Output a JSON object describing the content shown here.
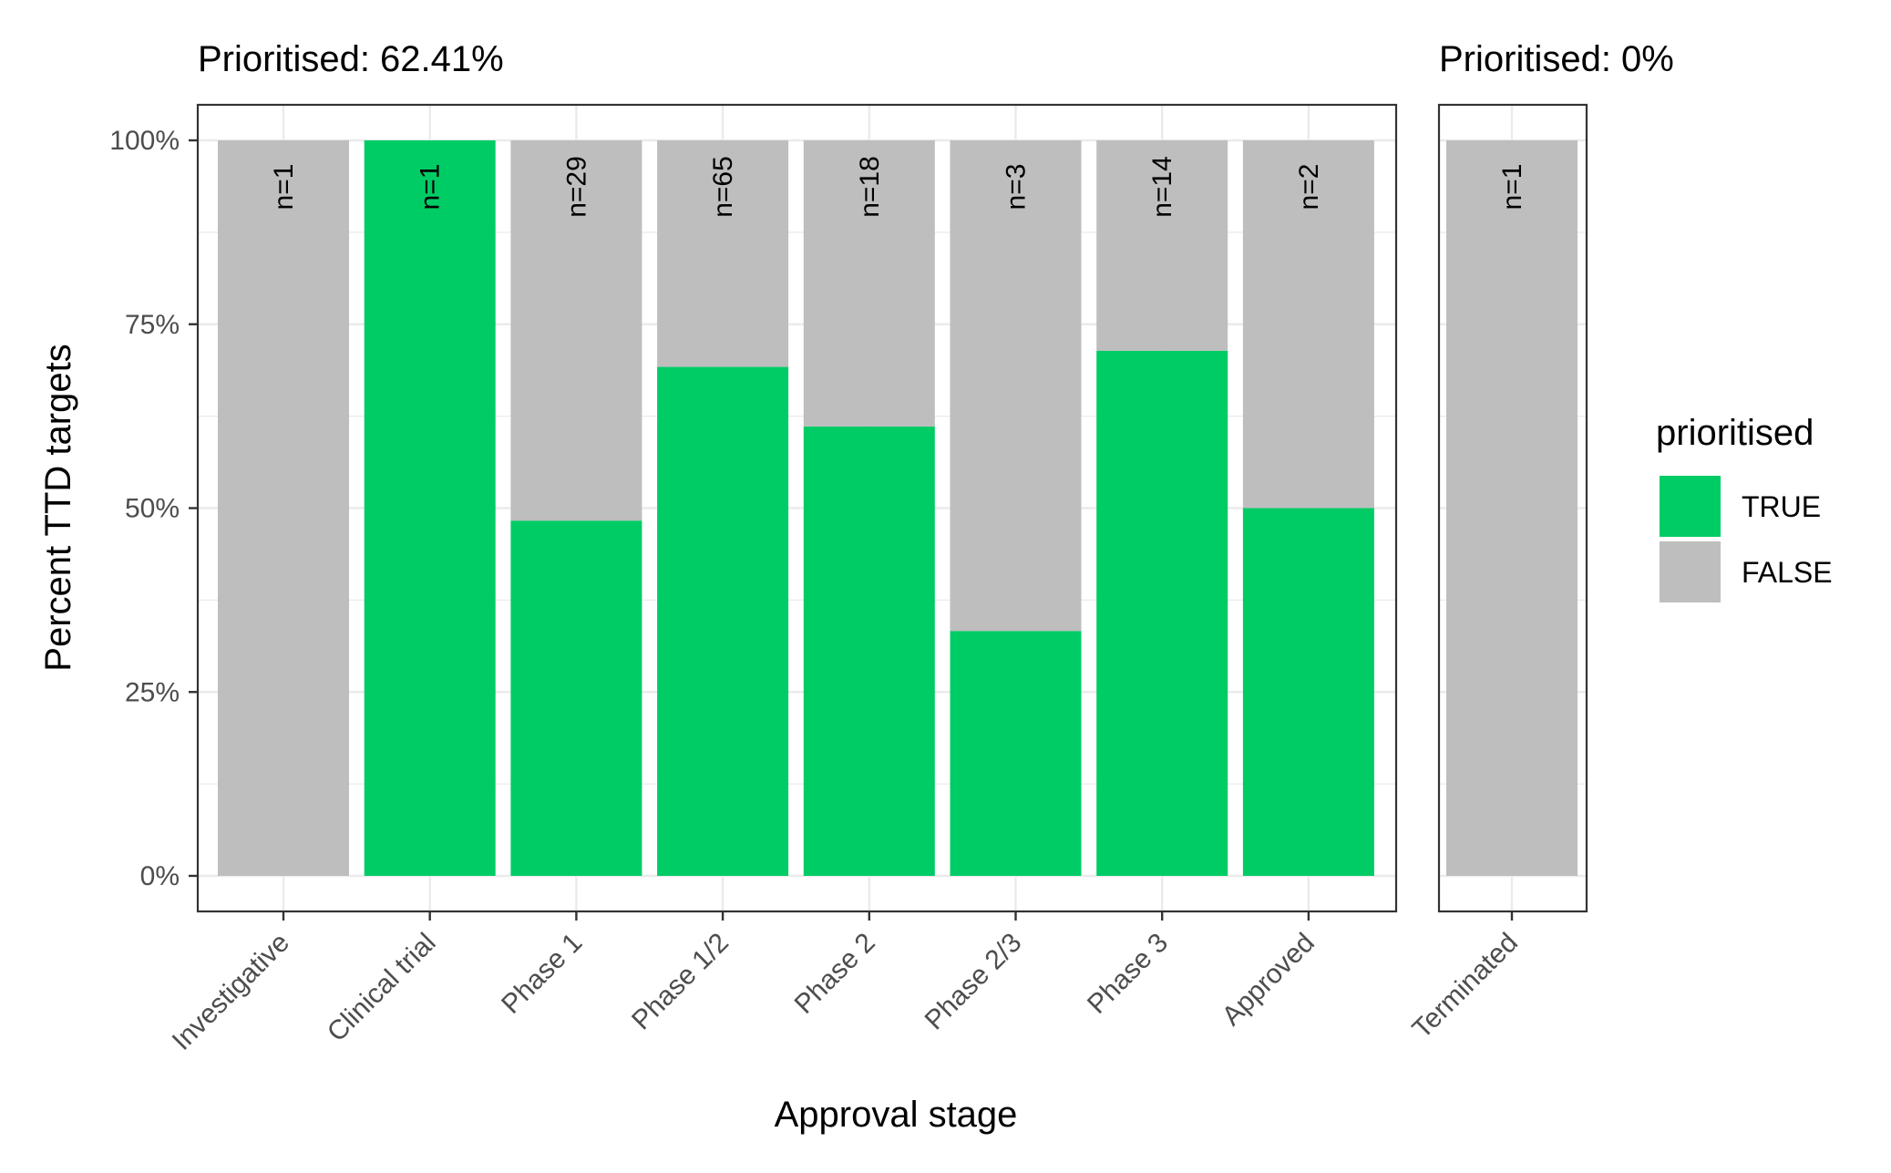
{
  "chart_data": {
    "type": "bar",
    "stacked": true,
    "xlabel": "Approval stage",
    "ylabel": "Percent TTD targets",
    "ylim": [
      0,
      1
    ],
    "y_ticks": [
      "0%",
      "25%",
      "50%",
      "75%",
      "100%"
    ],
    "grid": true,
    "legend": {
      "title": "prioritised",
      "position": "right",
      "entries": [
        {
          "label": "TRUE",
          "color": "#00CC66"
        },
        {
          "label": "FALSE",
          "color": "#BEBEBE"
        }
      ]
    },
    "colors": {
      "true": "#00CC66",
      "false": "#BEBEBE"
    },
    "facets": [
      {
        "title": "Prioritised: 62.41%",
        "categories": [
          "Investigative",
          "Clinical trial",
          "Phase 1",
          "Phase 1/2",
          "Phase 2",
          "Phase 2/3",
          "Phase 3",
          "Approved"
        ],
        "n_labels": [
          "n=1",
          "n=1",
          "n=29",
          "n=65",
          "n=18",
          "n=3",
          "n=14",
          "n=2"
        ],
        "series": [
          {
            "name": "TRUE",
            "values": [
              0.0,
              1.0,
              0.483,
              0.692,
              0.611,
              0.333,
              0.714,
              0.5
            ]
          },
          {
            "name": "FALSE",
            "values": [
              1.0,
              0.0,
              0.517,
              0.308,
              0.389,
              0.667,
              0.286,
              0.5
            ]
          }
        ]
      },
      {
        "title": "Prioritised: 0%",
        "categories": [
          "Terminated"
        ],
        "n_labels": [
          "n=1"
        ],
        "series": [
          {
            "name": "TRUE",
            "values": [
              0.0
            ]
          },
          {
            "name": "FALSE",
            "values": [
              1.0
            ]
          }
        ]
      }
    ]
  }
}
